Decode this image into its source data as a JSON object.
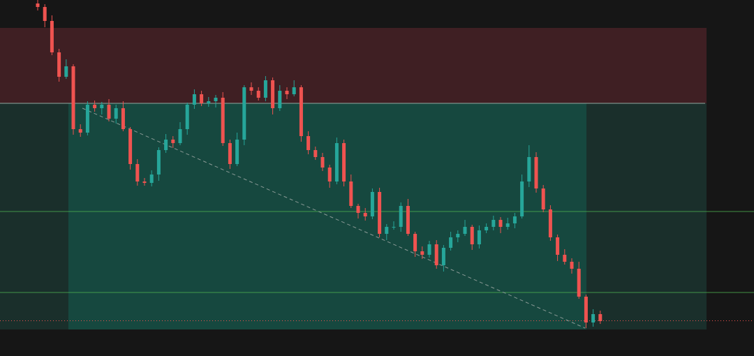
{
  "chart_data": {
    "type": "candlestick",
    "up_color": "#26a69a",
    "down_color": "#ef5350",
    "ylim": [
      0,
      510
    ],
    "open": [
      505,
      500,
      480,
      435,
      400,
      415,
      325,
      320,
      360,
      355,
      360,
      340,
      355,
      325,
      275,
      250,
      248,
      260,
      295,
      310,
      305,
      325,
      360,
      375,
      362,
      365,
      370,
      305,
      275,
      310,
      385,
      380,
      370,
      395,
      355,
      380,
      375,
      385,
      315,
      295,
      285,
      270,
      250,
      305,
      250,
      215,
      205,
      200,
      235,
      175,
      185,
      185,
      215,
      175,
      150,
      145,
      160,
      130,
      155,
      170,
      175,
      185,
      160,
      180,
      185,
      195,
      185,
      190,
      200,
      250,
      285,
      240,
      210,
      170,
      145,
      135,
      125,
      85,
      48,
      60
    ],
    "high": [
      510,
      504,
      488,
      440,
      425,
      418,
      332,
      365,
      366,
      364,
      368,
      360,
      365,
      328,
      282,
      255,
      266,
      299,
      318,
      315,
      335,
      363,
      382,
      380,
      371,
      374,
      378,
      310,
      320,
      388,
      392,
      385,
      401,
      399,
      388,
      385,
      395,
      388,
      322,
      300,
      291,
      274,
      313,
      310,
      260,
      218,
      212,
      240,
      241,
      189,
      193,
      220,
      225,
      178,
      157,
      165,
      166,
      159,
      178,
      180,
      195,
      188,
      187,
      190,
      201,
      199,
      198,
      205,
      260,
      302,
      292,
      245,
      216,
      174,
      153,
      140,
      135,
      88,
      67,
      65
    ],
    "low": [
      495,
      471,
      431,
      393,
      397,
      317,
      314,
      316,
      350,
      346,
      336,
      333,
      322,
      267,
      244,
      244,
      243,
      251,
      291,
      298,
      302,
      317,
      354,
      358,
      357,
      356,
      301,
      268,
      272,
      302,
      374,
      366,
      365,
      346,
      351,
      368,
      372,
      307,
      289,
      281,
      265,
      241,
      246,
      243,
      212,
      197,
      194,
      196,
      170,
      166,
      181,
      178,
      172,
      142,
      139,
      141,
      125,
      121,
      151,
      163,
      172,
      152,
      154,
      176,
      180,
      176,
      181,
      183,
      197,
      242,
      234,
      206,
      165,
      136,
      131,
      118,
      82,
      40,
      42,
      46
    ],
    "close": [
      500,
      480,
      435,
      400,
      415,
      325,
      320,
      360,
      355,
      360,
      340,
      355,
      325,
      275,
      250,
      248,
      260,
      295,
      310,
      305,
      325,
      360,
      375,
      362,
      365,
      370,
      305,
      275,
      310,
      385,
      380,
      370,
      395,
      355,
      380,
      375,
      385,
      315,
      295,
      285,
      270,
      250,
      305,
      250,
      215,
      205,
      200,
      235,
      175,
      185,
      185,
      215,
      175,
      150,
      145,
      160,
      130,
      155,
      170,
      175,
      185,
      160,
      180,
      185,
      195,
      185,
      190,
      200,
      250,
      285,
      240,
      210,
      170,
      145,
      135,
      125,
      85,
      48,
      60,
      50
    ]
  }
}
